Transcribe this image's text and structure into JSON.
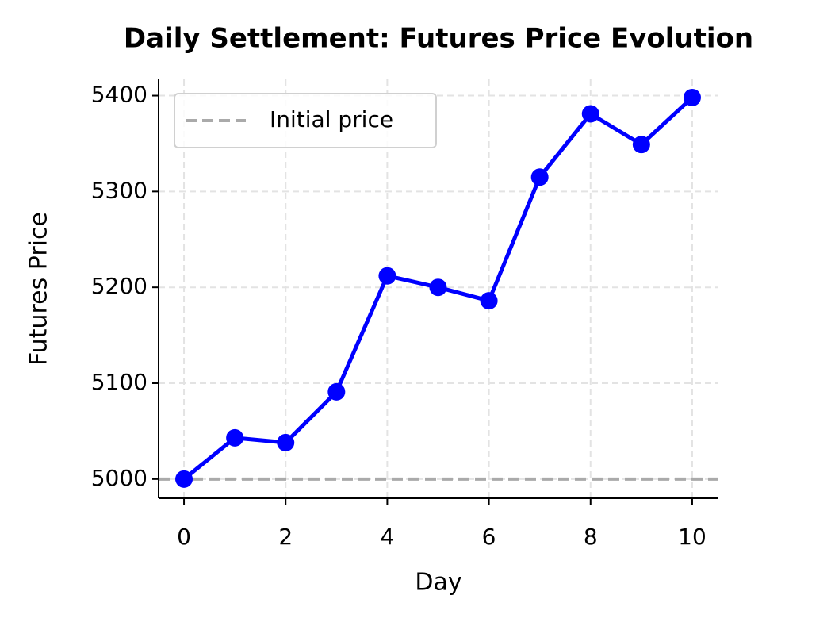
{
  "chart_data": {
    "type": "line",
    "title": "Daily Settlement: Futures Price Evolution",
    "x_label": "Day",
    "y_label": "Futures Price",
    "x": [
      0,
      1,
      2,
      3,
      4,
      5,
      6,
      7,
      8,
      9,
      10
    ],
    "series": [
      {
        "color": "#0000ff",
        "values": [
          5000,
          5043,
          5038,
          5091,
          5212,
          5200,
          5186,
          5315,
          5381,
          5349,
          5398
        ]
      }
    ],
    "hlines": [
      {
        "name": "Initial price",
        "value": 5000,
        "color": "#aaaaaa"
      }
    ],
    "xlim": [
      -0.5,
      10.5
    ],
    "xticks": [
      0,
      2,
      4,
      6,
      8,
      10
    ],
    "ylim": [
      4980,
      5417
    ],
    "yticks": [
      5000,
      5100,
      5200,
      5300,
      5400
    ],
    "grid": true,
    "legend": "upper left"
  }
}
